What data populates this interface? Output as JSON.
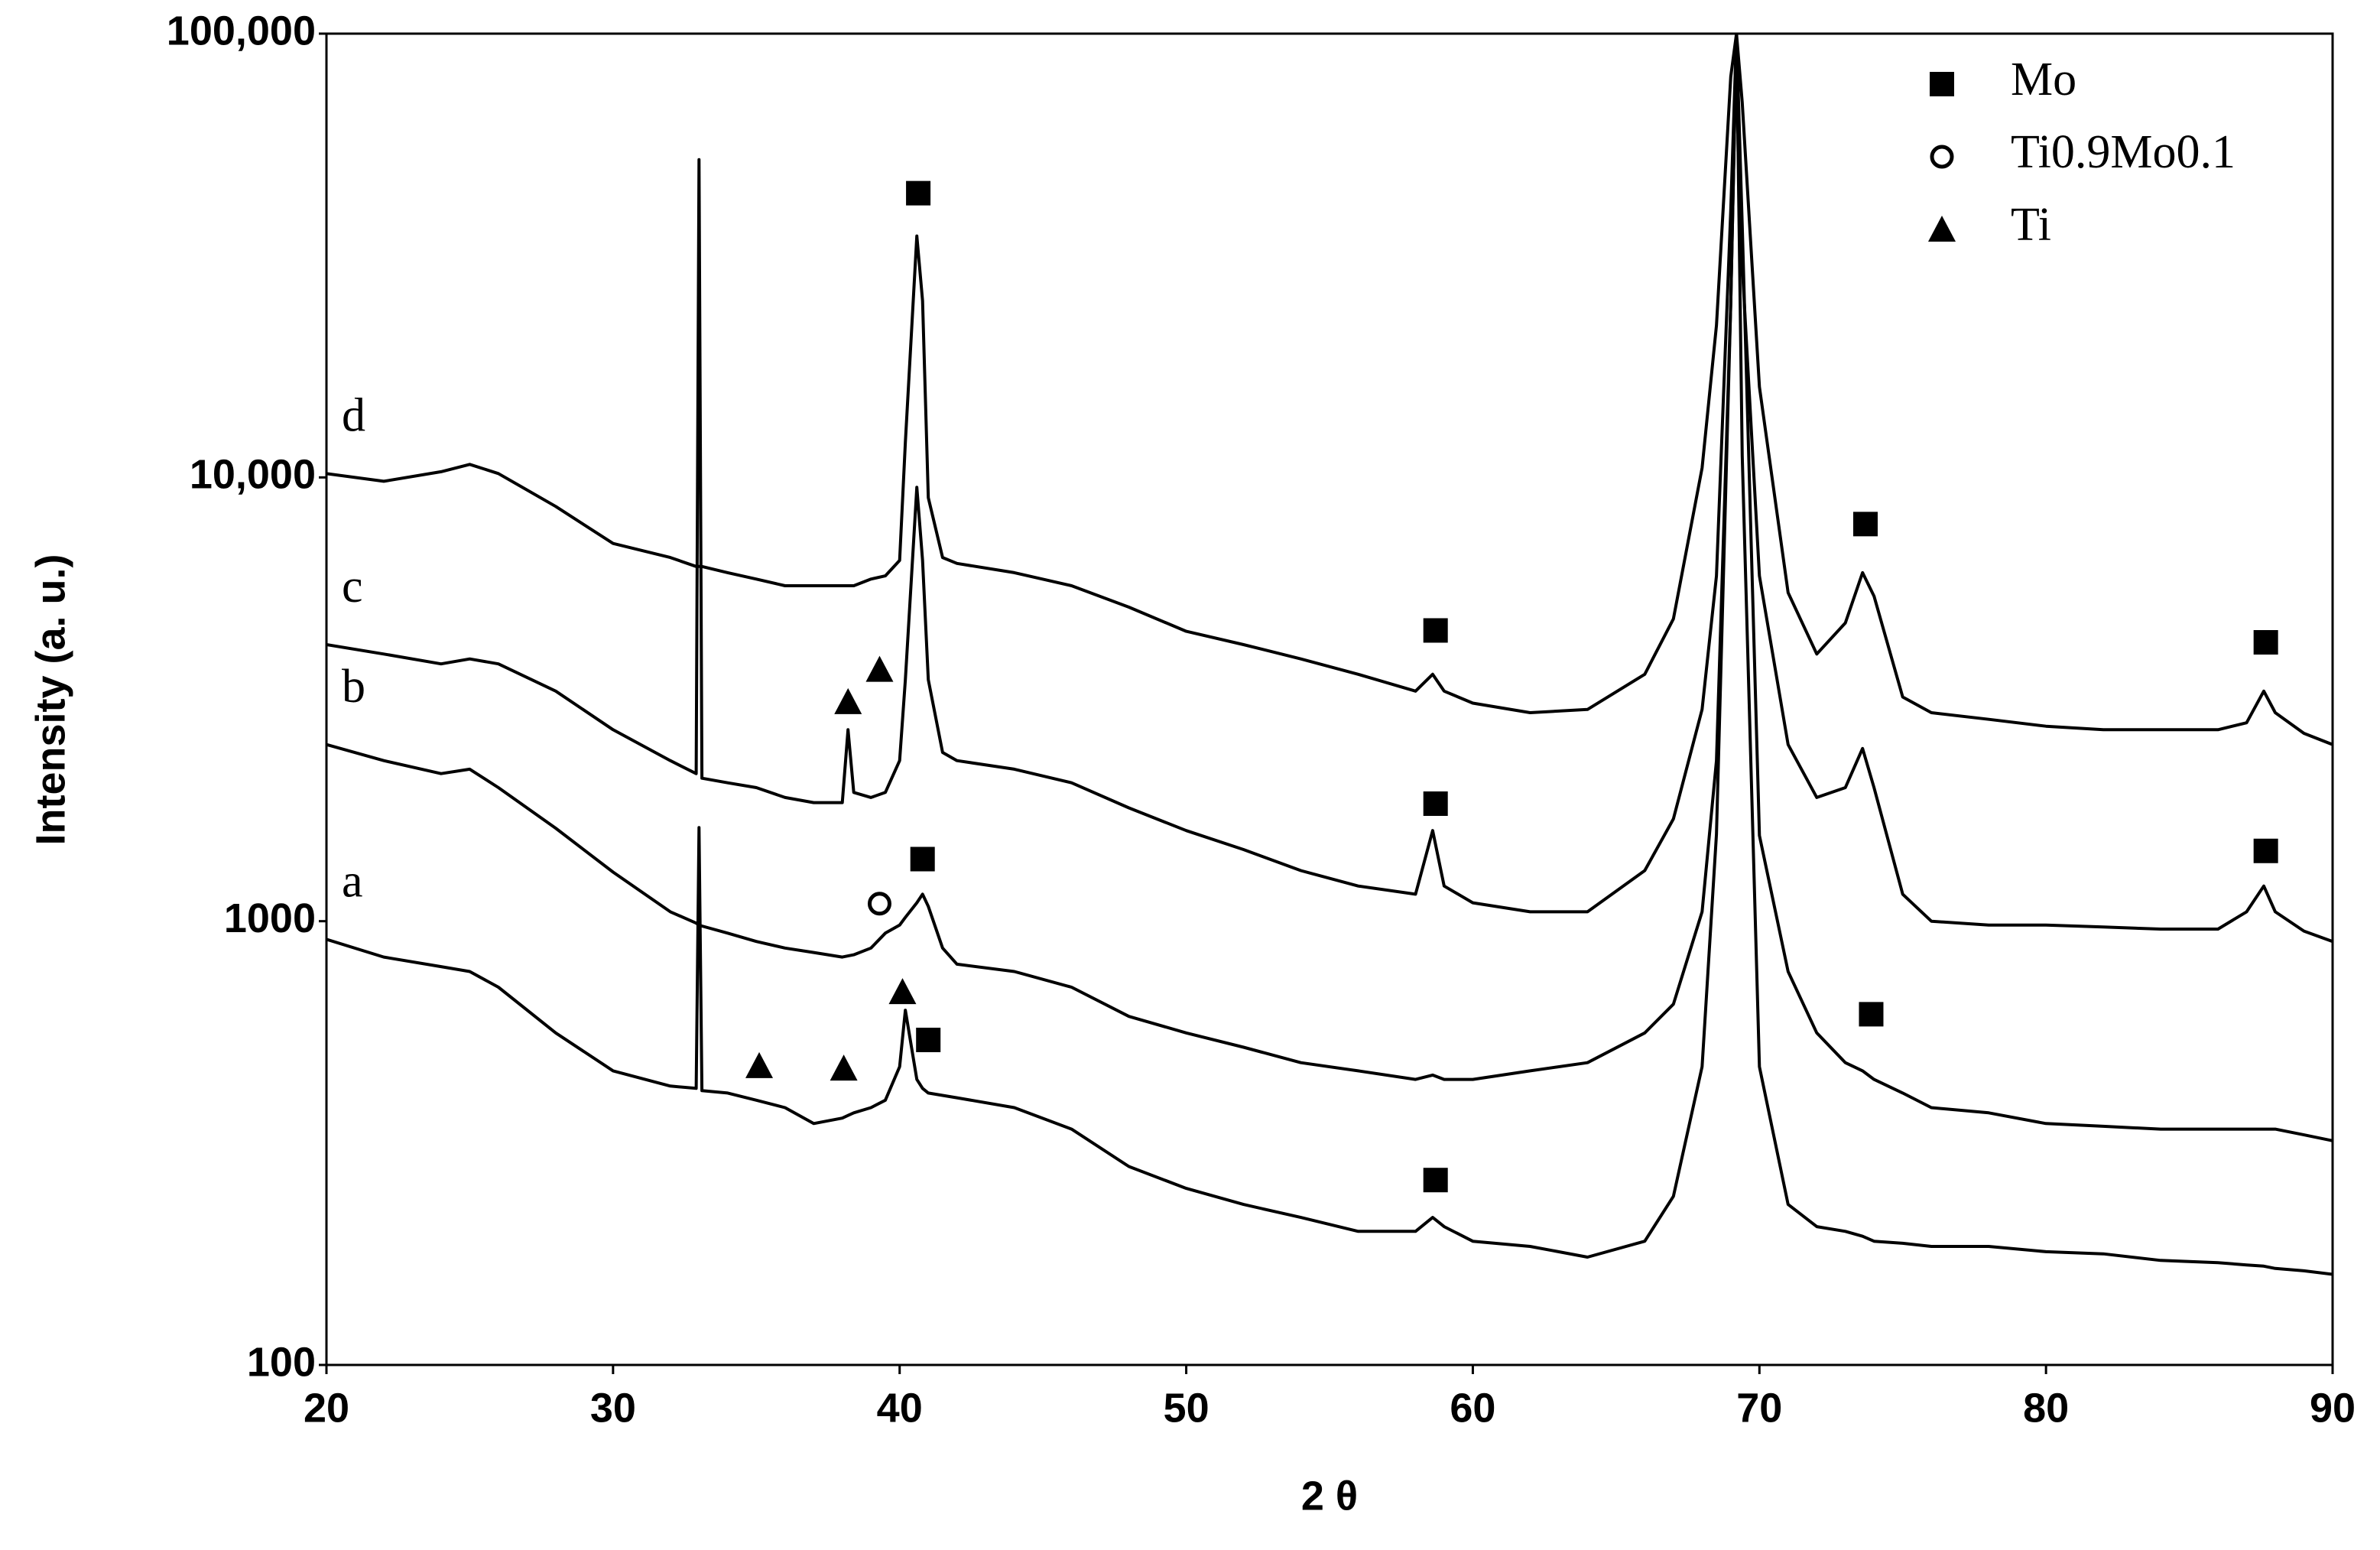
{
  "chart_data": {
    "type": "line",
    "x_label": "2 θ",
    "y_label": "Intensity (a. u.)",
    "xlim": [
      20,
      90
    ],
    "xticks": [
      20,
      30,
      40,
      50,
      60,
      70,
      80,
      90
    ],
    "ylim": [
      100,
      100000
    ],
    "yticks": [
      100,
      1000,
      {
        "value": 10000,
        "label": "10,000"
      },
      {
        "value": 100000,
        "label": "100,000"
      }
    ],
    "log_y": true,
    "grid": false,
    "legend_position": "upper right",
    "x": [
      20,
      22,
      24,
      25,
      26,
      28,
      30,
      32,
      32.9,
      33,
      33.1,
      34,
      35,
      36,
      37,
      38,
      38.2,
      38.4,
      39,
      39.5,
      40,
      40.2,
      40.6,
      40.8,
      41,
      41.5,
      42,
      44,
      46,
      48,
      50,
      52,
      54,
      56,
      58,
      58.6,
      59,
      60,
      62,
      64,
      66,
      67,
      68,
      68.5,
      69,
      69.2,
      69.4,
      70,
      71,
      72,
      73,
      73.6,
      74,
      75,
      76,
      78,
      80,
      82,
      84,
      86,
      87,
      87.6,
      88,
      89,
      90
    ],
    "series": [
      {
        "name": "a",
        "color": "#000000",
        "values": [
          910,
          830,
          790,
          770,
          710,
          560,
          460,
          425,
          420,
          1625,
          415,
          410,
          395,
          380,
          350,
          360,
          365,
          370,
          380,
          395,
          470,
          630,
          440,
          420,
          410,
          405,
          400,
          380,
          340,
          280,
          250,
          230,
          215,
          200,
          200,
          215,
          205,
          190,
          185,
          175,
          190,
          240,
          470,
          1570,
          24600,
          100000,
          11200,
          470,
          230,
          205,
          200,
          195,
          190,
          188,
          185,
          185,
          180,
          178,
          172,
          170,
          168,
          167,
          165,
          163,
          160
        ]
      },
      {
        "name": "b",
        "color": "#000000",
        "values": [
          2500,
          2300,
          2150,
          2200,
          2000,
          1620,
          1290,
          1050,
          990,
          980,
          975,
          940,
          900,
          870,
          850,
          830,
          835,
          840,
          870,
          940,
          980,
          1020,
          1100,
          1150,
          1080,
          870,
          800,
          770,
          710,
          610,
          560,
          520,
          480,
          460,
          440,
          450,
          440,
          440,
          460,
          480,
          560,
          650,
          1050,
          2300,
          24600,
          100000,
          37000,
          1560,
          770,
          560,
          480,
          460,
          440,
          410,
          380,
          370,
          350,
          345,
          340,
          340,
          340,
          340,
          340,
          330,
          320
        ]
      },
      {
        "name": "c",
        "color": "#000000",
        "values": [
          4200,
          4000,
          3800,
          3900,
          3800,
          3300,
          2700,
          2300,
          2150,
          52000,
          2100,
          2050,
          2000,
          1900,
          1850,
          1850,
          2700,
          1950,
          1900,
          1950,
          2300,
          3500,
          9500,
          6500,
          3500,
          2400,
          2300,
          2200,
          2050,
          1800,
          1600,
          1450,
          1300,
          1200,
          1150,
          1600,
          1200,
          1100,
          1050,
          1050,
          1300,
          1700,
          3000,
          6000,
          40000,
          100000,
          30000,
          6000,
          2500,
          1900,
          2000,
          2450,
          2000,
          1150,
          1000,
          980,
          980,
          970,
          960,
          960,
          1050,
          1200,
          1050,
          950,
          900
        ]
      },
      {
        "name": "d",
        "color": "#000000",
        "values": [
          10200,
          9800,
          10300,
          10700,
          10200,
          8600,
          7100,
          6600,
          6300,
          6300,
          6300,
          6100,
          5900,
          5700,
          5700,
          5700,
          5700,
          5700,
          5900,
          6000,
          6500,
          12000,
          35000,
          25000,
          9000,
          6600,
          6400,
          6100,
          5700,
          5100,
          4500,
          4200,
          3900,
          3600,
          3300,
          3600,
          3300,
          3100,
          2950,
          3000,
          3600,
          4800,
          10500,
          22000,
          80000,
          100000,
          70000,
          16000,
          5500,
          4000,
          4700,
          6100,
          5400,
          3200,
          2950,
          2850,
          2750,
          2700,
          2700,
          2700,
          2800,
          3300,
          2950,
          2650,
          2500
        ]
      }
    ],
    "phases": [
      {
        "name": "Mo",
        "marker": "square",
        "x": [
          40.65,
          58.7,
          73.7,
          87.67,
          58.7,
          87.67,
          40.8,
          41.0,
          73.9,
          58.7
        ],
        "y": [
          43700,
          4520,
          7850,
          4250,
          1840,
          1440,
          1380,
          540,
          617,
          261
        ]
      },
      {
        "name": "Ti0.9Mo0.1",
        "marker": "circle",
        "x": [
          39.3
        ],
        "y": [
          1095
        ]
      },
      {
        "name": "Ti",
        "marker": "triangle",
        "x": [
          38.2,
          39.3,
          35.1,
          38.05,
          40.1
        ],
        "y": [
          3120,
          3690,
          472,
          466,
          693
        ]
      }
    ]
  }
}
